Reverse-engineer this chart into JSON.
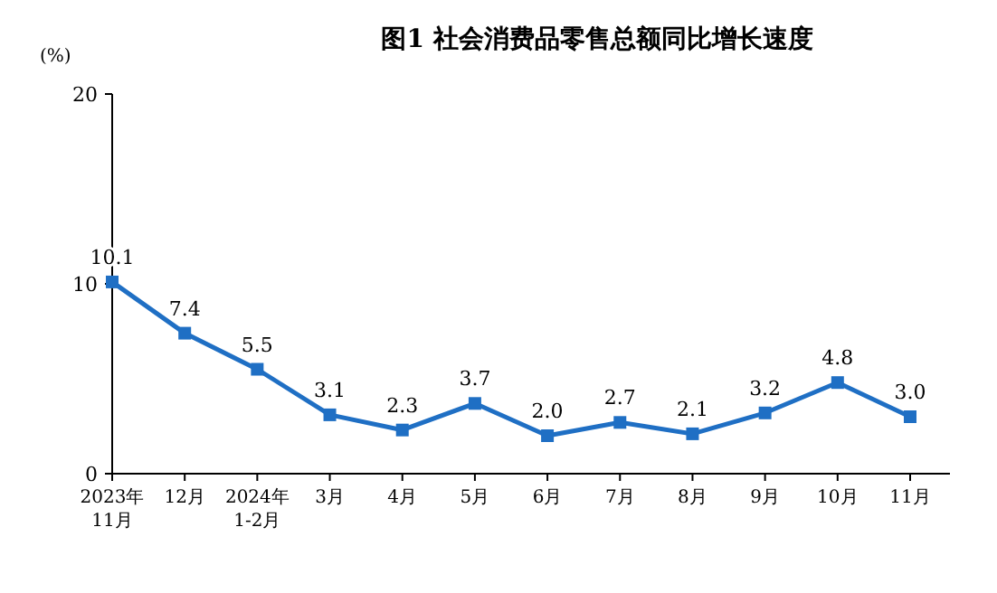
{
  "chart_data": {
    "type": "line",
    "title": "图1 社会消费品零售总额同比增长速度",
    "ylabel": "(%)",
    "categories": [
      "2023年\n11月",
      "12月",
      "2024年\n1-2月",
      "3月",
      "4月",
      "5月",
      "6月",
      "7月",
      "8月",
      "9月",
      "10月",
      "11月"
    ],
    "series": [
      {
        "color": "#1f6fc4",
        "values": [
          10.1,
          7.4,
          5.5,
          3.1,
          2.3,
          3.7,
          2.0,
          2.7,
          2.1,
          3.2,
          4.8,
          3.0
        ],
        "value_labels": [
          "10.1",
          "7.4",
          "5.5",
          "3.1",
          "2.3",
          "3.7",
          "2.0",
          "2.7",
          "2.1",
          "3.2",
          "4.8",
          "3.0"
        ]
      }
    ],
    "ylim": [
      0,
      20
    ],
    "yticks": [
      0,
      10,
      20
    ],
    "marker": "square",
    "line_style": "solid"
  }
}
